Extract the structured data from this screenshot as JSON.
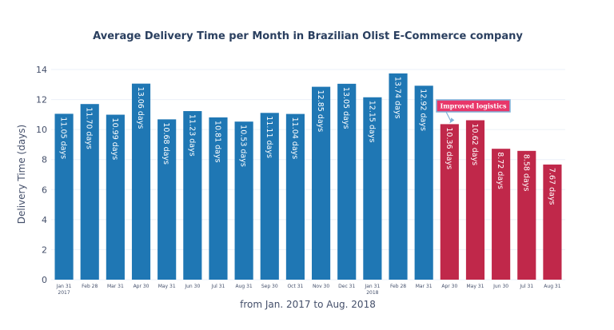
{
  "chart_data": {
    "type": "bar",
    "title": "Average Delivery Time per Month in Brazilian Olist E-Commerce company",
    "xlabel": "from Jan. 2017 to Aug. 2018",
    "ylabel": "Delivery Time (days)",
    "ylim": [
      0,
      14
    ],
    "yticks": [
      0,
      2,
      4,
      6,
      8,
      10,
      12,
      14
    ],
    "grid": true,
    "categories": [
      {
        "label": "Jan 31",
        "sub": "2017"
      },
      {
        "label": "Feb 28",
        "sub": ""
      },
      {
        "label": "Mar 31",
        "sub": ""
      },
      {
        "label": "Apr 30",
        "sub": ""
      },
      {
        "label": "May 31",
        "sub": ""
      },
      {
        "label": "Jun 30",
        "sub": ""
      },
      {
        "label": "Jul 31",
        "sub": ""
      },
      {
        "label": "Aug 31",
        "sub": ""
      },
      {
        "label": "Sep 30",
        "sub": ""
      },
      {
        "label": "Oct 31",
        "sub": ""
      },
      {
        "label": "Nov 30",
        "sub": ""
      },
      {
        "label": "Dec 31",
        "sub": ""
      },
      {
        "label": "Jan 31",
        "sub": "2018"
      },
      {
        "label": "Feb 28",
        "sub": ""
      },
      {
        "label": "Mar 31",
        "sub": ""
      },
      {
        "label": "Apr 30",
        "sub": ""
      },
      {
        "label": "May 31",
        "sub": ""
      },
      {
        "label": "Jun 30",
        "sub": ""
      },
      {
        "label": "Jul 31",
        "sub": ""
      },
      {
        "label": "Aug 31",
        "sub": ""
      }
    ],
    "values": [
      11.05,
      11.7,
      10.99,
      13.06,
      10.68,
      11.23,
      10.81,
      10.53,
      11.11,
      11.04,
      12.85,
      13.05,
      12.15,
      13.74,
      12.92,
      10.36,
      10.62,
      8.72,
      8.58,
      7.67
    ],
    "data_labels": [
      "11.05 days",
      "11.70 days",
      "10.99 days",
      "13.06 days",
      "10.68 days",
      "11.23 days",
      "10.81 days",
      "10.53 days",
      "11.11 days",
      "11.04 days",
      "12.85 days",
      "13.05 days",
      "12.15 days",
      "13.74 days",
      "12.92 days",
      "10.36 days",
      "10.62 days",
      "8.72 days",
      "8.58 days",
      "7.67 days"
    ],
    "highlight_from_index": 15,
    "colors": {
      "base": "#1f77b4",
      "highlight": "#c0284a",
      "annotation_bg": "#e8376a",
      "annotation_border": "#7fb2d9"
    },
    "annotation": {
      "text": "Improved logistics",
      "index": 15
    }
  }
}
